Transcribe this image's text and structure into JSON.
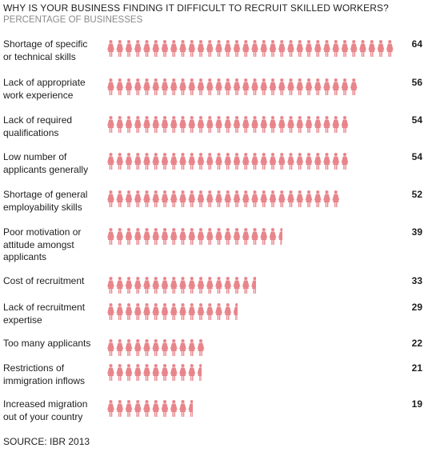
{
  "title": "WHY IS YOUR BUSINESS FINDING IT DIFFICULT TO RECRUIT SKILLED WORKERS?",
  "subtitle": "PERCENTAGE OF BUSINESSES",
  "source": "SOURCE: IBR 2013",
  "colors": {
    "figure": "#e8858b",
    "text": "#1e1e1e",
    "subtitle": "#8a8a8a"
  },
  "icon": "person-icon",
  "chart_data": {
    "type": "bar",
    "orientation": "horizontal",
    "style": "pictograph",
    "title": "WHY IS YOUR BUSINESS FINDING IT DIFFICULT TO RECRUIT SKILLED WORKERS?",
    "subtitle": "PERCENTAGE OF BUSINESSES",
    "xlabel": "",
    "ylabel": "",
    "xlim": [
      0,
      64
    ],
    "grid": false,
    "legend": "none",
    "categories": [
      "Shortage of specific or technical skills",
      "Lack of appropriate work experience",
      "Lack of required qualifications",
      "Low number of applicants generally",
      "Shortage of general employability skills",
      "Poor motivation or attitude amongst applicants",
      "Cost of recruitment",
      "Lack of recruitment expertise",
      "Too many applicants",
      "Restrictions of immigration inflows",
      "Increased migration out of your country"
    ],
    "values": [
      64,
      56,
      54,
      54,
      52,
      39,
      33,
      29,
      22,
      21,
      19
    ]
  },
  "rows": [
    {
      "label_lines": [
        "Shortage of specific",
        "or technical skills"
      ],
      "value": "64"
    },
    {
      "label_lines": [
        "Lack of appropriate",
        "work experience"
      ],
      "value": "56"
    },
    {
      "label_lines": [
        "Lack of required",
        "qualifications"
      ],
      "value": "54"
    },
    {
      "label_lines": [
        "Low number of",
        "applicants generally"
      ],
      "value": "54"
    },
    {
      "label_lines": [
        "Shortage of general",
        "employability skills"
      ],
      "value": "52"
    },
    {
      "label_lines": [
        "Poor motivation or",
        "attitude amongst",
        "applicants"
      ],
      "value": "39"
    },
    {
      "label_lines": [
        "Cost of recruitment"
      ],
      "value": "33"
    },
    {
      "label_lines": [
        "Lack of recruitment",
        "expertise"
      ],
      "value": "29"
    },
    {
      "label_lines": [
        "Too many applicants"
      ],
      "value": "22"
    },
    {
      "label_lines": [
        "Restrictions of",
        "immigration inflows"
      ],
      "value": "21"
    },
    {
      "label_lines": [
        "Increased migration",
        "out of your country"
      ],
      "value": "19"
    }
  ]
}
